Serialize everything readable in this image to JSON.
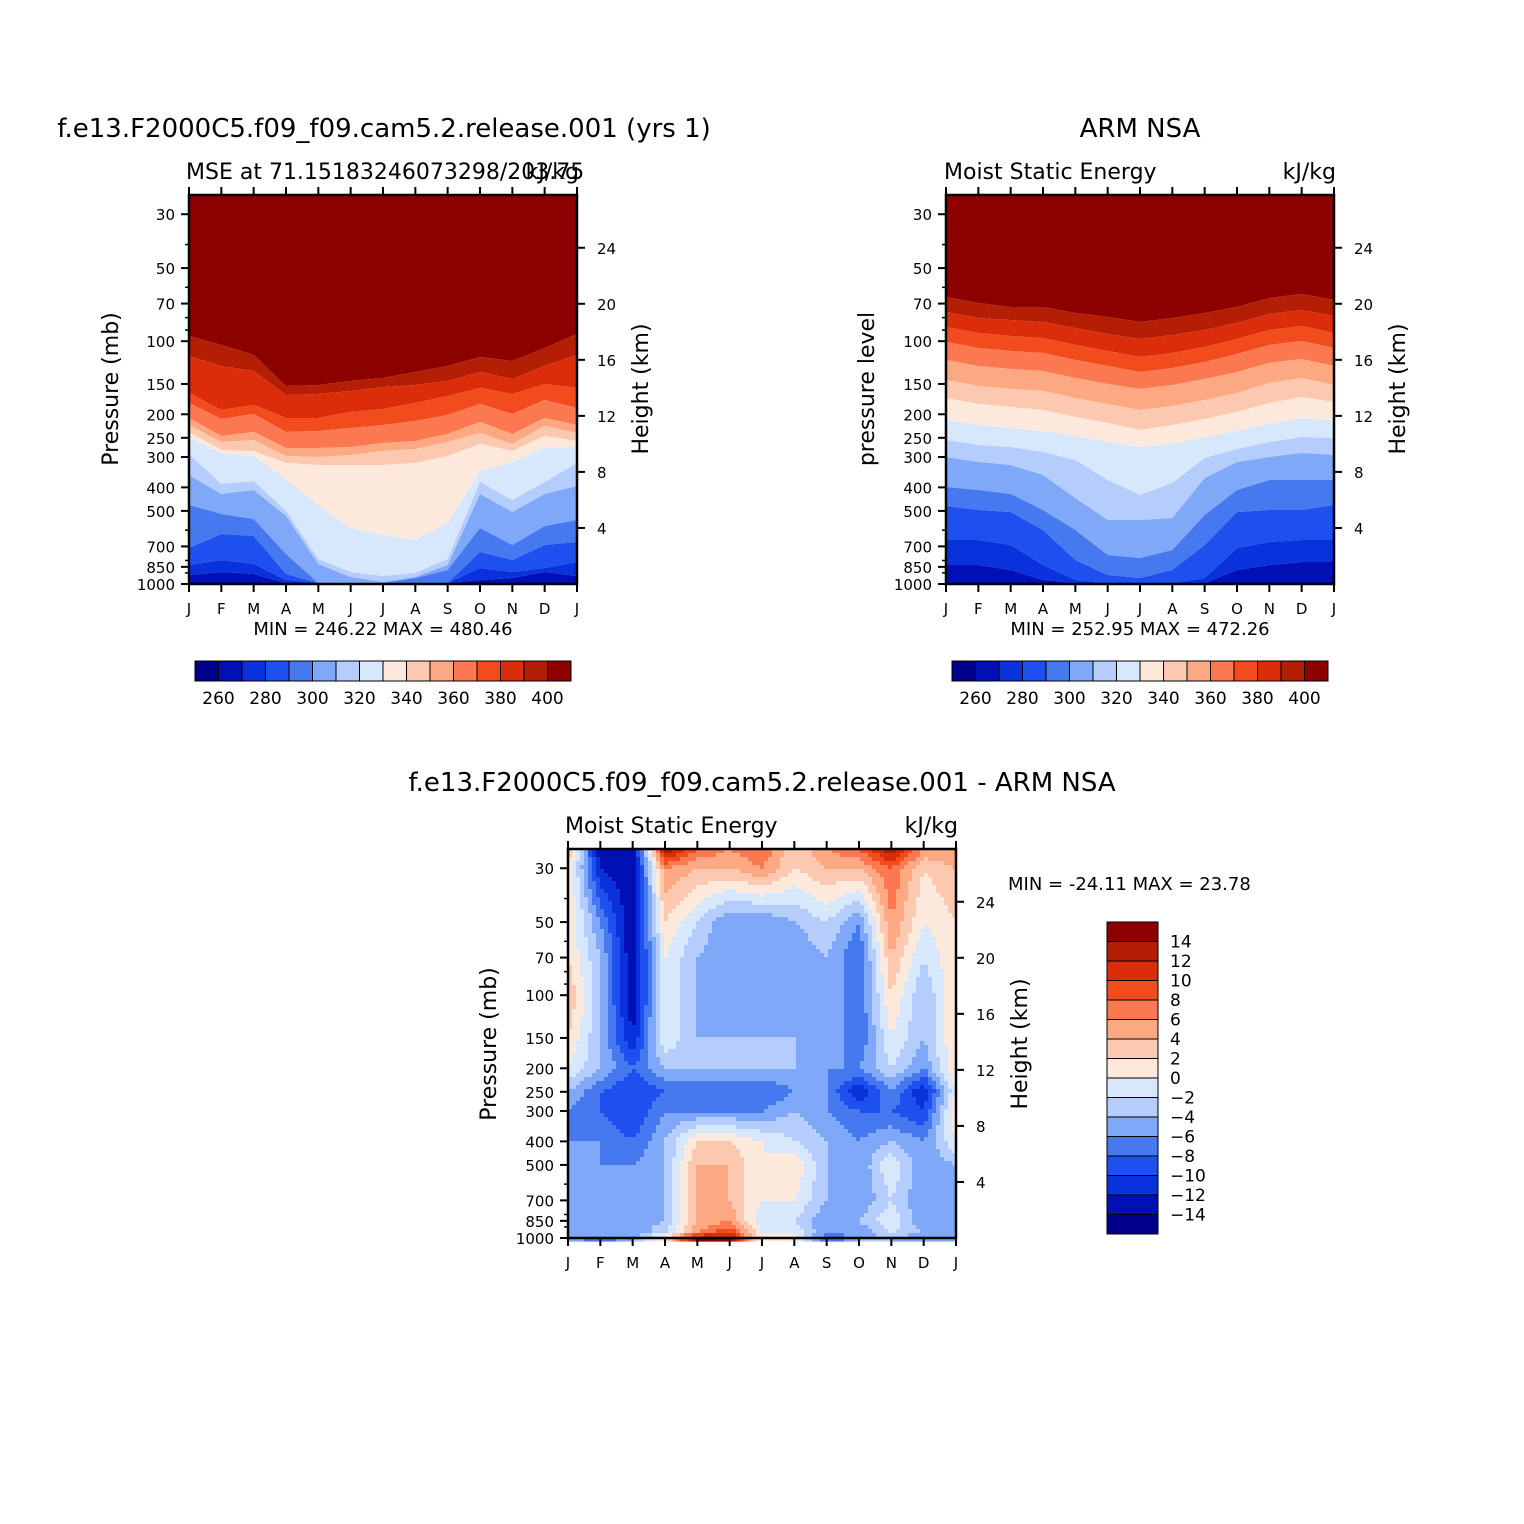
{
  "chart_data": [
    {
      "type": "heatmap",
      "title": "f.e13.F2000C5.f09_f09.cam5.2.release.001 (yrs 1)",
      "left_subtitle": "MSE at 71.15183246073298/203.75",
      "right_subtitle": "kJ/kg",
      "xlabel": "",
      "ylabel": "Pressure (mb)",
      "y2label": "Height (km)",
      "x_ticks": [
        "J",
        "F",
        "M",
        "A",
        "M",
        "J",
        "J",
        "A",
        "S",
        "O",
        "N",
        "D",
        "J"
      ],
      "y_ticks": [
        "30",
        "50",
        "70",
        "100",
        "150",
        "200",
        "250",
        "300",
        "400",
        "500",
        "700",
        "850",
        "1000"
      ],
      "y2_ticks": [
        "24",
        "20",
        "16",
        "12",
        "8",
        "4"
      ],
      "y_log_scale": true,
      "ylim": [
        1000,
        25
      ],
      "min_max_text": "MIN = 246.22 MAX = 480.46",
      "colorbar_labels": [
        "260",
        "280",
        "300",
        "320",
        "340",
        "360",
        "380",
        "400"
      ],
      "colorbar_orientation": "horizontal",
      "surface_boundaries": [
        [
          336,
          345,
          355,
          386,
          385,
          381,
          378,
          372,
          366,
          357,
          361,
          348,
          334
        ],
        [
          356,
          366,
          371,
          395,
          394,
          391,
          387,
          385,
          381,
          372,
          379,
          366,
          355
        ],
        [
          393,
          410,
          405,
          418,
          418,
          412,
          409,
          403,
          396,
          388,
          394,
          384,
          388
        ],
        [
          403,
          419,
          414,
          432,
          431,
          428,
          425,
          421,
          415,
          404,
          414,
          400,
          408
        ],
        [
          418,
          436,
          432,
          448,
          448,
          447,
          443,
          441,
          434,
          422,
          434,
          418,
          425
        ],
        [
          425,
          442,
          440,
          456,
          457,
          455,
          451,
          449,
          442,
          433,
          444,
          426,
          433
        ],
        [
          432,
          450,
          451,
          463,
          465,
          465,
          465,
          463,
          456,
          444,
          451,
          436,
          441
        ],
        [
          438,
          453,
          456,
          479,
          505,
          528,
          535,
          540,
          523,
          471,
          462,
          448,
          447
        ],
        [
          454,
          484,
          481,
          511,
          559,
          572,
          576,
          573,
          559,
          482,
          500,
          482,
          463
        ],
        [
          475,
          494,
          490,
          516,
          564,
          577,
          582,
          577,
          565,
          494,
          512,
          494,
          486
        ],
        [
          505,
          514,
          519,
          554,
          583,
          583,
          583,
          578,
          570,
          528,
          545,
          526,
          520
        ],
        [
          548,
          534,
          536,
          574,
          583,
          583,
          583,
          583,
          583,
          552,
          560,
          545,
          542
        ],
        [
          565,
          560,
          564,
          580,
          583,
          583,
          583,
          583,
          583,
          568,
          572,
          568,
          562
        ],
        [
          575,
          572,
          574,
          583,
          583,
          583,
          583,
          583,
          583,
          580,
          578,
          572,
          576
        ]
      ]
    },
    {
      "type": "heatmap",
      "title": "ARM NSA",
      "left_subtitle": "Moist Static Energy",
      "right_subtitle": "kJ/kg",
      "xlabel": "",
      "ylabel": "pressure level",
      "y2label": "Height (km)",
      "x_ticks": [
        "J",
        "F",
        "M",
        "A",
        "M",
        "J",
        "J",
        "A",
        "S",
        "O",
        "N",
        "D",
        "J"
      ],
      "y_ticks": [
        "30",
        "50",
        "70",
        "100",
        "150",
        "200",
        "250",
        "300",
        "400",
        "500",
        "700",
        "850",
        "1000"
      ],
      "y2_ticks": [
        "24",
        "20",
        "16",
        "12",
        "8",
        "4"
      ],
      "y_log_scale": true,
      "ylim": [
        1000,
        25
      ],
      "min_max_text": "MIN = 252.95 MAX = 472.26",
      "colorbar_labels": [
        "260",
        "280",
        "300",
        "320",
        "340",
        "360",
        "380",
        "400"
      ],
      "colorbar_orientation": "horizontal",
      "surface_boundaries": [
        [
          297,
          303,
          307,
          307,
          313,
          317,
          322,
          318,
          313,
          307,
          298,
          294,
          300
        ],
        [
          312,
          318,
          320,
          322,
          328,
          334,
          339,
          335,
          330,
          323,
          314,
          310,
          316
        ],
        [
          327,
          333,
          336,
          338,
          345,
          351,
          357,
          353,
          347,
          339,
          330,
          326,
          333
        ],
        [
          342,
          348,
          351,
          353,
          360,
          366,
          372,
          368,
          362,
          354,
          345,
          341,
          348
        ],
        [
          360,
          366,
          369,
          371,
          378,
          384,
          389,
          385,
          379,
          372,
          363,
          359,
          366
        ],
        [
          380,
          386,
          389,
          391,
          398,
          404,
          410,
          406,
          400,
          393,
          383,
          378,
          385
        ],
        [
          398,
          404,
          407,
          410,
          417,
          423,
          430,
          425,
          419,
          412,
          403,
          397,
          402
        ],
        [
          420,
          425,
          428,
          431,
          436,
          442,
          447,
          444,
          437,
          431,
          424,
          418,
          420
        ],
        [
          440,
          445,
          447,
          452,
          460,
          480,
          495,
          483,
          458,
          449,
          442,
          437,
          438
        ],
        [
          457,
          462,
          465,
          475,
          498,
          520,
          520,
          518,
          478,
          462,
          457,
          453,
          455
        ],
        [
          487,
          490,
          494,
          510,
          530,
          555,
          558,
          550,
          515,
          490,
          480,
          480,
          480
        ],
        [
          506,
          510,
          512,
          530,
          560,
          575,
          578,
          570,
          545,
          512,
          510,
          510,
          505
        ],
        [
          540,
          540,
          545,
          565,
          580,
          583,
          583,
          583,
          578,
          548,
          542,
          540,
          540
        ],
        [
          565,
          565,
          570,
          580,
          583,
          583,
          583,
          583,
          583,
          570,
          565,
          562,
          562
        ]
      ]
    },
    {
      "type": "heatmap",
      "title": "f.e13.F2000C5.f09_f09.cam5.2.release.001 - ARM NSA",
      "left_subtitle": "Moist Static Energy",
      "right_subtitle": "kJ/kg",
      "xlabel": "",
      "ylabel": "Pressure (mb)",
      "y2label": "Height (km)",
      "x_ticks": [
        "J",
        "F",
        "M",
        "A",
        "M",
        "J",
        "J",
        "A",
        "S",
        "O",
        "N",
        "D",
        "J"
      ],
      "y_ticks": [
        "30",
        "50",
        "70",
        "100",
        "150",
        "200",
        "250",
        "300",
        "400",
        "500",
        "700",
        "850",
        "1000"
      ],
      "y2_ticks": [
        "24",
        "20",
        "16",
        "12",
        "8",
        "4"
      ],
      "y_log_scale": true,
      "ylim": [
        1000,
        25
      ],
      "min_max_text": "MIN = -24.11 MAX = 23.78",
      "colorbar_labels": [
        "14",
        "12",
        "10",
        "8",
        "6",
        "4",
        "2",
        "0",
        "-2",
        "-4",
        "-6",
        "-8",
        "-10",
        "-12",
        "-14"
      ],
      "colorbar_orientation": "vertical",
      "grid": [
        [
          4,
          -14,
          -14,
          14,
          8,
          6,
          8,
          2,
          6,
          8,
          14,
          6,
          6
        ],
        [
          2,
          -12,
          -14,
          6,
          4,
          4,
          6,
          2,
          4,
          4,
          8,
          2,
          4
        ],
        [
          2,
          -6,
          -14,
          2,
          -2,
          -6,
          -6,
          -4,
          -2,
          -6,
          6,
          0,
          2
        ],
        [
          2,
          -4,
          -14,
          0,
          -4,
          -6,
          -6,
          -6,
          -4,
          -8,
          4,
          -2,
          2
        ],
        [
          4,
          -4,
          -14,
          0,
          -4,
          -6,
          -6,
          -6,
          -4,
          -8,
          2,
          -4,
          2
        ],
        [
          2,
          -4,
          -12,
          0,
          -4,
          -4,
          -4,
          -4,
          -4,
          -8,
          0,
          -4,
          2
        ],
        [
          0,
          -4,
          -8,
          -4,
          -4,
          -4,
          -4,
          -4,
          -6,
          -6,
          -2,
          -6,
          2
        ],
        [
          -4,
          -8,
          -10,
          -8,
          -8,
          -8,
          -8,
          -6,
          -6,
          -12,
          -6,
          -12,
          0
        ],
        [
          -6,
          -8,
          -10,
          -6,
          -6,
          -6,
          -6,
          -4,
          -6,
          -8,
          -8,
          -10,
          2
        ],
        [
          -6,
          -6,
          -8,
          -4,
          2,
          2,
          0,
          -2,
          -4,
          -6,
          -4,
          -6,
          0
        ],
        [
          -6,
          -6,
          -6,
          -4,
          4,
          4,
          0,
          2,
          -4,
          -6,
          0,
          -6,
          -4
        ],
        [
          -6,
          -6,
          -6,
          -4,
          4,
          4,
          0,
          0,
          -4,
          -6,
          -2,
          -6,
          -6
        ],
        [
          -6,
          -6,
          -6,
          -4,
          4,
          6,
          -2,
          -2,
          -6,
          -4,
          0,
          -6,
          -6
        ],
        [
          -4,
          -4,
          -6,
          -2,
          6,
          10,
          0,
          0,
          -6,
          -6,
          -2,
          -4,
          -6
        ],
        [
          -4,
          -8,
          -4,
          2,
          14,
          14,
          0,
          0,
          -8,
          -4,
          -4,
          -6,
          -6
        ]
      ],
      "grid_pressure_levels": [
        25,
        30,
        50,
        70,
        100,
        150,
        200,
        250,
        300,
        400,
        500,
        700,
        850,
        950,
        1000
      ]
    }
  ],
  "colors": {
    "seq_palette": [
      "#00008c",
      "#0010b4",
      "#0a32dc",
      "#1e50f0",
      "#4678f0",
      "#80a8f8",
      "#b4cdfc",
      "#d8e8fc",
      "#fde8dc",
      "#fdc8b0",
      "#fca882",
      "#fc7850",
      "#f24c1e",
      "#dc2d0a",
      "#b41e05",
      "#8c0000"
    ],
    "diff_palette": [
      "#00008c",
      "#0010b4",
      "#0a32dc",
      "#1e50f0",
      "#4678f0",
      "#80a8f8",
      "#b4cdfc",
      "#d8e8fc",
      "#fde8dc",
      "#fdc8b0",
      "#fca882",
      "#fc7850",
      "#f24c1e",
      "#dc2d0a",
      "#b41e05",
      "#8c0000"
    ],
    "text": "#000000"
  }
}
